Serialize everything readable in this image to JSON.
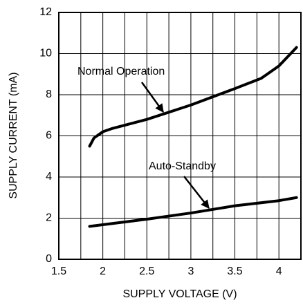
{
  "chart_data": {
    "type": "line",
    "xlabel": "SUPPLY VOLTAGE (V)",
    "ylabel": "SUPPLY CURRENT (mA)",
    "series": [
      {
        "name": "Normal Operation",
        "color": "#000000",
        "x": [
          1.85,
          1.9,
          2.0,
          2.1,
          2.5,
          3.0,
          3.5,
          3.8,
          4.0,
          4.2
        ],
        "values": [
          5.5,
          5.9,
          6.2,
          6.35,
          6.8,
          7.5,
          8.3,
          8.8,
          9.4,
          10.3
        ]
      },
      {
        "name": "Auto-Standby",
        "color": "#000000",
        "x": [
          1.85,
          2.5,
          3.0,
          3.5,
          4.0,
          4.2
        ],
        "values": [
          1.6,
          1.95,
          2.25,
          2.6,
          2.85,
          3.0
        ]
      }
    ],
    "xlim": [
      1.5,
      4.25
    ],
    "xticks": [
      1.5,
      2,
      2.5,
      3,
      3.5,
      4
    ],
    "xminorticks": [
      1.75,
      2.25,
      2.75,
      3.25,
      3.75
    ],
    "ylim": [
      0,
      12
    ],
    "yticks": [
      0,
      2,
      4,
      6,
      8,
      10,
      12
    ],
    "grid": true
  }
}
